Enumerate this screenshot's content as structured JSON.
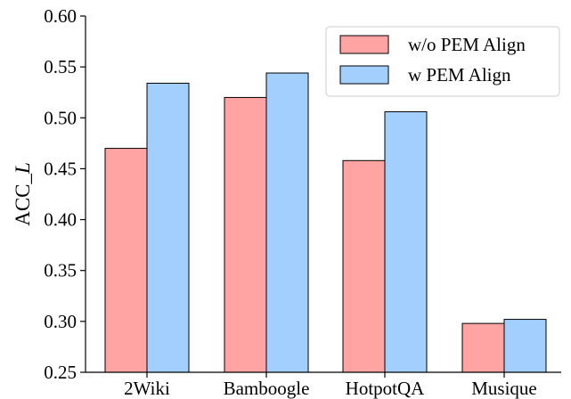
{
  "chart_data": {
    "type": "bar",
    "title": "",
    "xlabel": "",
    "ylabel": "ACC_L",
    "categories": [
      "2Wiki",
      "Bamboogle",
      "HotpotQA",
      "Musique"
    ],
    "series": [
      {
        "name": "w/o PEM Align",
        "color": "#ffa3a3",
        "values": [
          0.47,
          0.52,
          0.458,
          0.298
        ]
      },
      {
        "name": "w PEM Align",
        "color": "#a3cffe",
        "values": [
          0.534,
          0.544,
          0.506,
          0.302
        ]
      }
    ],
    "ylim": [
      0.25,
      0.6
    ],
    "yticks": [
      "0.25",
      "0.30",
      "0.35",
      "0.40",
      "0.45",
      "0.50",
      "0.55",
      "0.60"
    ],
    "grid": false,
    "legend_position": "top-right"
  }
}
